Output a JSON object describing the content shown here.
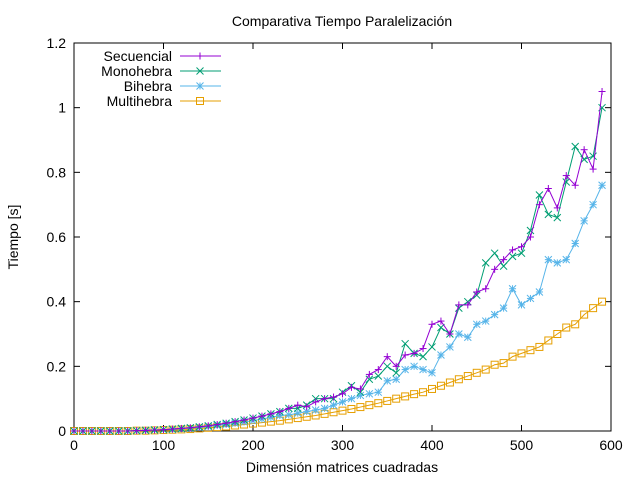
{
  "chart_data": {
    "type": "line",
    "title": "Comparativa Tiempo Paralelización",
    "xlabel": "Dimensión matrices cuadradas",
    "ylabel": "Tiempo [s]",
    "xlim": [
      0,
      600
    ],
    "ylim": [
      0,
      1.2
    ],
    "xticks": [
      0,
      100,
      200,
      300,
      400,
      500,
      600
    ],
    "yticks": [
      0,
      0.2,
      0.4,
      0.6,
      0.8,
      1,
      1.2
    ],
    "xtick_labels": [
      "0",
      "100",
      "200",
      "300",
      "400",
      "500",
      "600"
    ],
    "ytick_labels": [
      "0",
      "0.2",
      "0.4",
      "0.6",
      "0.8",
      "1",
      "1.2"
    ],
    "grid": false,
    "legend_position": "top-left",
    "x": [
      0,
      10,
      20,
      30,
      40,
      50,
      60,
      70,
      80,
      90,
      100,
      110,
      120,
      130,
      140,
      150,
      160,
      170,
      180,
      190,
      200,
      210,
      220,
      230,
      240,
      250,
      260,
      270,
      280,
      290,
      300,
      310,
      320,
      330,
      340,
      350,
      360,
      370,
      380,
      390,
      400,
      410,
      420,
      430,
      440,
      450,
      460,
      470,
      480,
      490,
      500,
      510,
      520,
      530,
      540,
      550,
      560,
      570,
      580,
      590
    ],
    "series": [
      {
        "name": "Secuencial",
        "color": "#9400d3",
        "marker": "plus",
        "values": [
          0,
          0,
          0,
          0,
          0,
          0,
          0,
          0.001,
          0.002,
          0.003,
          0.004,
          0.006,
          0.008,
          0.01,
          0.013,
          0.016,
          0.02,
          0.024,
          0.029,
          0.034,
          0.04,
          0.046,
          0.053,
          0.06,
          0.07,
          0.08,
          0.075,
          0.09,
          0.1,
          0.105,
          0.115,
          0.135,
          0.13,
          0.175,
          0.19,
          0.23,
          0.2,
          0.235,
          0.24,
          0.255,
          0.33,
          0.34,
          0.3,
          0.39,
          0.39,
          0.43,
          0.44,
          0.5,
          0.53,
          0.56,
          0.57,
          0.6,
          0.7,
          0.75,
          0.69,
          0.79,
          0.76,
          0.87,
          0.81,
          1.05
        ]
      },
      {
        "name": "Monohebra",
        "color": "#009e73",
        "marker": "cross",
        "values": [
          0,
          0,
          0,
          0,
          0,
          0,
          0,
          0.001,
          0.002,
          0.003,
          0.004,
          0.006,
          0.008,
          0.01,
          0.013,
          0.016,
          0.02,
          0.024,
          0.029,
          0.034,
          0.04,
          0.046,
          0.053,
          0.06,
          0.07,
          0.07,
          0.08,
          0.1,
          0.1,
          0.1,
          0.12,
          0.14,
          0.12,
          0.16,
          0.17,
          0.2,
          0.18,
          0.27,
          0.24,
          0.23,
          0.26,
          0.32,
          0.3,
          0.38,
          0.4,
          0.42,
          0.52,
          0.55,
          0.51,
          0.54,
          0.55,
          0.62,
          0.73,
          0.67,
          0.66,
          0.77,
          0.88,
          0.84,
          0.85,
          1.0
        ]
      },
      {
        "name": "Bihebra",
        "color": "#56b4e9",
        "marker": "star",
        "values": [
          0,
          0,
          0,
          0,
          0,
          0,
          0,
          0.001,
          0.002,
          0.003,
          0.004,
          0.005,
          0.007,
          0.009,
          0.011,
          0.014,
          0.017,
          0.02,
          0.024,
          0.028,
          0.032,
          0.037,
          0.042,
          0.048,
          0.05,
          0.055,
          0.06,
          0.065,
          0.07,
          0.08,
          0.09,
          0.1,
          0.11,
          0.115,
          0.12,
          0.155,
          0.16,
          0.19,
          0.2,
          0.19,
          0.18,
          0.235,
          0.26,
          0.3,
          0.29,
          0.33,
          0.34,
          0.36,
          0.38,
          0.44,
          0.39,
          0.41,
          0.43,
          0.53,
          0.52,
          0.53,
          0.58,
          0.65,
          0.7,
          0.76
        ]
      },
      {
        "name": "Multihebra",
        "color": "#e69f00",
        "marker": "square",
        "values": [
          0,
          0,
          0,
          0,
          0,
          0,
          0,
          0.001,
          0.001,
          0.002,
          0.003,
          0.004,
          0.005,
          0.006,
          0.008,
          0.01,
          0.012,
          0.014,
          0.017,
          0.02,
          0.023,
          0.026,
          0.029,
          0.032,
          0.036,
          0.04,
          0.044,
          0.048,
          0.053,
          0.058,
          0.063,
          0.068,
          0.074,
          0.08,
          0.086,
          0.093,
          0.1,
          0.107,
          0.114,
          0.12,
          0.13,
          0.14,
          0.15,
          0.16,
          0.17,
          0.18,
          0.19,
          0.205,
          0.21,
          0.23,
          0.24,
          0.25,
          0.26,
          0.28,
          0.3,
          0.32,
          0.33,
          0.36,
          0.38,
          0.4
        ]
      }
    ]
  }
}
